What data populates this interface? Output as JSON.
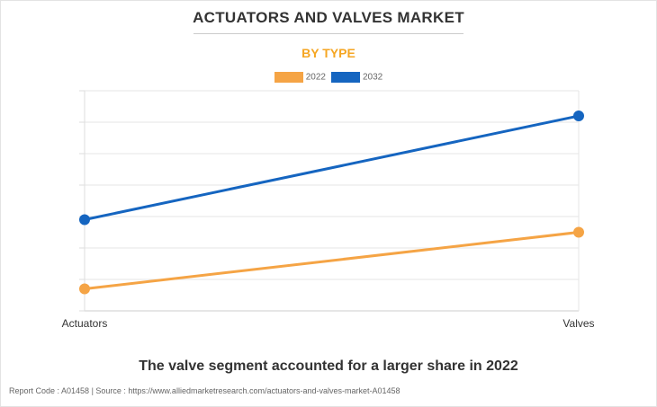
{
  "title": "ACTUATORS AND VALVES MARKET",
  "subtitle": "BY TYPE",
  "caption": "The valve segment accounted for a larger share in 2022",
  "footer": "Report Code : A01458  |  Source : https://www.alliedmarketresearch.com/actuators-and-valves-market-A01458",
  "chart_data": {
    "type": "line",
    "title": "ACTUATORS AND VALVES MARKET",
    "subtitle": "BY TYPE",
    "categories": [
      "Actuators",
      "Valves"
    ],
    "series": [
      {
        "name": "2022",
        "color": "#f5a445",
        "values": [
          0.7,
          2.5
        ]
      },
      {
        "name": "2032",
        "color": "#1565c0",
        "values": [
          2.9,
          6.2
        ]
      }
    ],
    "ylim": [
      0,
      7
    ],
    "grid": true,
    "legend": "top-center",
    "xlabel": "",
    "ylabel": ""
  }
}
